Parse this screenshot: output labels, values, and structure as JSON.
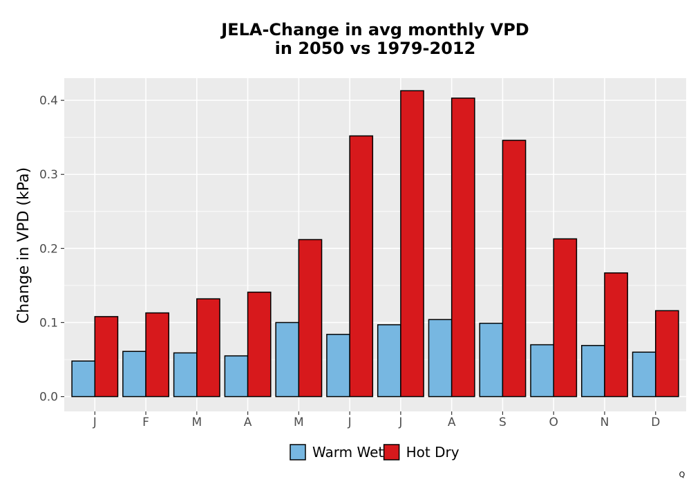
{
  "chart_data": {
    "type": "bar",
    "title_lines": [
      "JELA-Change in avg monthly VPD",
      "in 2050 vs 1979-2012"
    ],
    "xlabel": "",
    "ylabel": "Change in VPD (kPa)",
    "categories": [
      "J",
      "F",
      "M",
      "A",
      "M",
      "J",
      "J",
      "A",
      "S",
      "O",
      "N",
      "D"
    ],
    "series": [
      {
        "name": "Warm Wet",
        "color": "#77b7e1",
        "values": [
          0.048,
          0.061,
          0.059,
          0.055,
          0.1,
          0.084,
          0.097,
          0.104,
          0.099,
          0.07,
          0.069,
          0.06
        ]
      },
      {
        "name": "Hot Dry",
        "color": "#d7191c",
        "values": [
          0.108,
          0.113,
          0.132,
          0.141,
          0.212,
          0.352,
          0.413,
          0.403,
          0.346,
          0.213,
          0.167,
          0.116
        ]
      }
    ],
    "ylim": [
      -0.02,
      0.43
    ],
    "yticks": [
      0.0,
      0.1,
      0.2,
      0.3,
      0.4
    ],
    "ytick_labels": [
      "0.0",
      "0.1",
      "0.2",
      "0.3",
      "0.4"
    ],
    "grid": true,
    "legend_position": "bottom",
    "panel_background": "#ebebeb"
  },
  "corner_mark": "Q"
}
